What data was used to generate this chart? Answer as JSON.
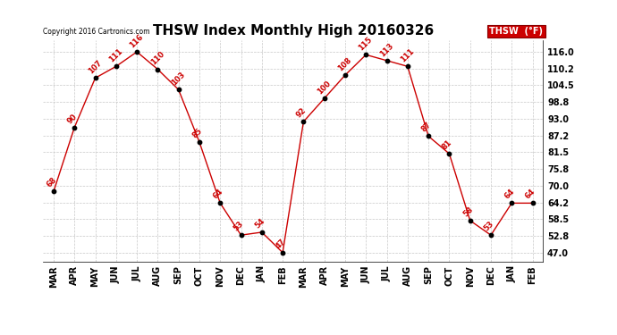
{
  "title": "THSW Index Monthly High 20160326",
  "copyright": "Copyright 2016 Cartronics.com",
  "legend_label": "THSW  (°F)",
  "categories": [
    "MAR",
    "APR",
    "MAY",
    "JUN",
    "JUL",
    "AUG",
    "SEP",
    "OCT",
    "NOV",
    "DEC",
    "JAN",
    "FEB",
    "MAR",
    "APR",
    "MAY",
    "JUN",
    "JUL",
    "AUG",
    "SEP",
    "OCT",
    "NOV",
    "DEC",
    "JAN",
    "FEB"
  ],
  "values": [
    68,
    90,
    107,
    111,
    116,
    110,
    103,
    85,
    64,
    53,
    54,
    47,
    92,
    100,
    108,
    115,
    113,
    111,
    87,
    81,
    58,
    53,
    64,
    64
  ],
  "line_color": "#cc0000",
  "marker_color": "#000000",
  "background_color": "#ffffff",
  "grid_color": "#c8c8c8",
  "yticks": [
    47.0,
    52.8,
    58.5,
    64.2,
    70.0,
    75.8,
    81.5,
    87.2,
    93.0,
    98.8,
    104.5,
    110.2,
    116.0
  ],
  "ylim": [
    44,
    120
  ],
  "title_fontsize": 11,
  "label_fontsize": 7,
  "annot_fontsize": 6,
  "legend_bg": "#cc0000",
  "legend_text_color": "#ffffff"
}
